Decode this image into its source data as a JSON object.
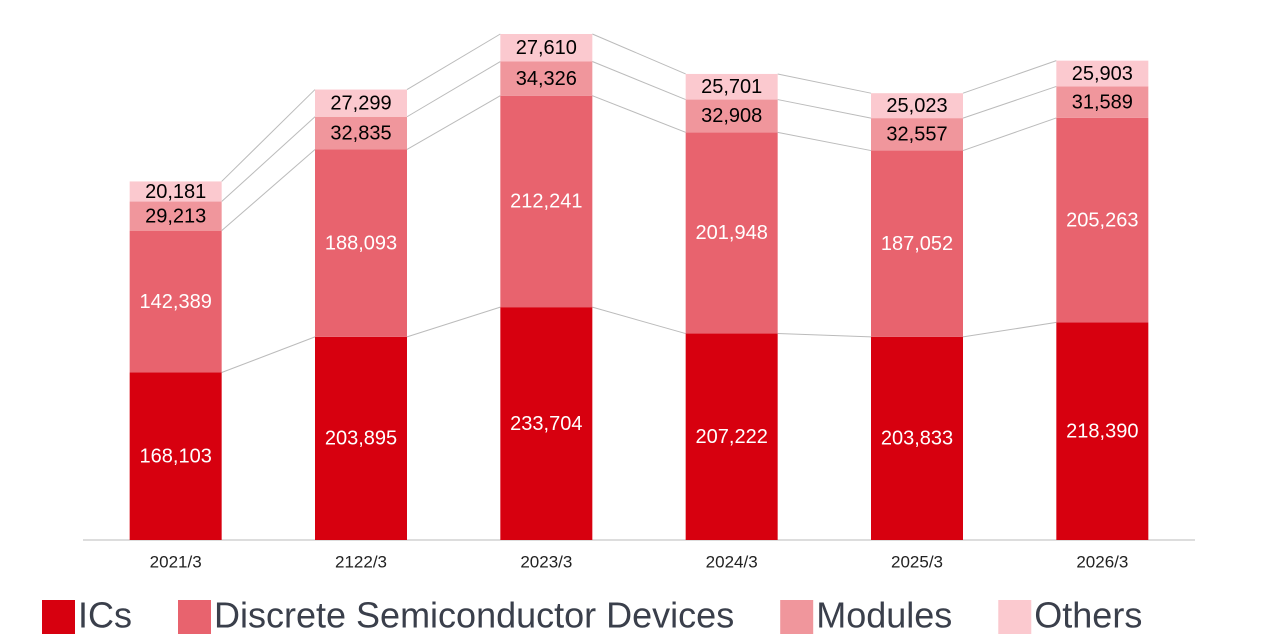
{
  "chart_data": {
    "type": "stacked_bar",
    "categories": [
      "2021/3",
      "2122/3",
      "2023/3",
      "2024/3",
      "2025/3",
      "2026/3"
    ],
    "series": [
      {
        "name": "ICs",
        "color": "#d7000f",
        "values": [
          168103,
          203895,
          233704,
          207222,
          203833,
          218390
        ],
        "value_labels": [
          "168,103",
          "203,895",
          "233,704",
          "207,222",
          "203,833",
          "218,390"
        ]
      },
      {
        "name": "Discrete Semiconductor Devices",
        "color": "#e8636e",
        "values": [
          142389,
          188093,
          212241,
          201948,
          187052,
          205263
        ],
        "value_labels": [
          "142,389",
          "188,093",
          "212,241",
          "201,948",
          "187,052",
          "205,263"
        ]
      },
      {
        "name": "Modules",
        "color": "#f0969c",
        "values": [
          29213,
          32835,
          34326,
          32908,
          32557,
          31589
        ],
        "value_labels": [
          "29,213",
          "32,835",
          "34,326",
          "32,908",
          "32,557",
          "31,589"
        ]
      },
      {
        "name": "Others",
        "color": "#fbc9cf",
        "values": [
          20181,
          27299,
          27610,
          25701,
          25023,
          25903
        ],
        "value_labels": [
          "20,181",
          "27,299",
          "27,610",
          "25,701",
          "25,023",
          "25,903"
        ]
      }
    ]
  }
}
